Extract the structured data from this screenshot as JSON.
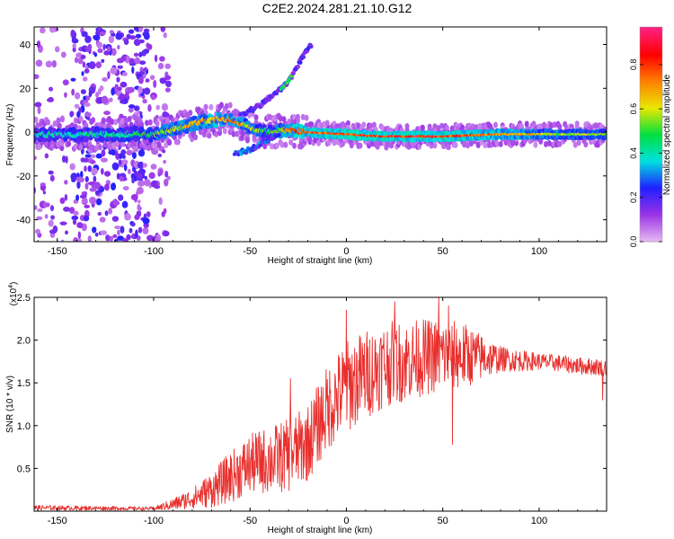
{
  "title": "C2E2.2024.281.21.10.G12",
  "chart_data": [
    {
      "type": "heatmap",
      "xlabel": "Height of straight line (km)",
      "ylabel": "Frequency (Hz)",
      "xlim": [
        -162,
        135
      ],
      "ylim": [
        -50,
        48
      ],
      "xticks": [
        -150,
        -100,
        -50,
        0,
        50,
        100
      ],
      "yticks": [
        -40,
        -20,
        0,
        20,
        40
      ],
      "colorbar": {
        "label": "Normalized spectral amplitude",
        "ticks": [
          0.0,
          0.2,
          0.4,
          0.6,
          0.8
        ],
        "range": [
          0,
          0.97
        ],
        "colormap": [
          "#e6b8f2",
          "#9a33e6",
          "#2020ff",
          "#00e0e0",
          "#00e040",
          "#e8e800",
          "#ff8000",
          "#ff0000",
          "#ff2080"
        ]
      },
      "main_band": {
        "center_hz": [
          [
            -162,
            -1
          ],
          [
            -120,
            -1
          ],
          [
            -100,
            -1
          ],
          [
            -85,
            2
          ],
          [
            -75,
            5
          ],
          [
            -60,
            6
          ],
          [
            -50,
            2
          ],
          [
            -40,
            0
          ],
          [
            -30,
            1
          ],
          [
            -20,
            0
          ],
          [
            0,
            -1
          ],
          [
            20,
            -2
          ],
          [
            50,
            -2
          ],
          [
            80,
            -1
          ],
          [
            110,
            -1
          ],
          [
            135,
            -1
          ]
        ],
        "peak_amplitude": [
          [
            -162,
            0.45
          ],
          [
            -110,
            0.5
          ],
          [
            -80,
            0.75
          ],
          [
            -60,
            0.8
          ],
          [
            -40,
            0.55
          ],
          [
            -25,
            0.9
          ],
          [
            0,
            0.95
          ],
          [
            50,
            0.95
          ],
          [
            100,
            0.7
          ],
          [
            135,
            0.6
          ]
        ]
      },
      "rising_branch_hz": [
        [
          -55,
          8
        ],
        [
          -45,
          12
        ],
        [
          -38,
          17
        ],
        [
          -32,
          21
        ],
        [
          -28,
          26
        ],
        [
          -23,
          34
        ],
        [
          -18,
          40
        ]
      ],
      "falling_branch_hz": [
        [
          -58,
          -10
        ],
        [
          -50,
          -8
        ],
        [
          -42,
          -4
        ],
        [
          -35,
          -1
        ]
      ]
    },
    {
      "type": "line",
      "xlabel": "Height of straight line (km)",
      "ylabel": "SNR (10 * v/v)",
      "yscale_label": "(x10",
      "yscale_exponent": "4",
      "xlim": [
        -162,
        135
      ],
      "ylim": [
        0,
        2.5
      ],
      "xticks": [
        -150,
        -100,
        -50,
        0,
        50,
        100
      ],
      "yticks": [
        0.5,
        1.0,
        1.5,
        2.0,
        2.5
      ],
      "color": "#e8302e",
      "trend": [
        [
          -162,
          0.04
        ],
        [
          -100,
          0.03
        ],
        [
          -90,
          0.08
        ],
        [
          -80,
          0.15
        ],
        [
          -70,
          0.25
        ],
        [
          -60,
          0.4
        ],
        [
          -50,
          0.55
        ],
        [
          -40,
          0.6
        ],
        [
          -30,
          0.65
        ],
        [
          -20,
          0.8
        ],
        [
          -10,
          1.2
        ],
        [
          0,
          1.45
        ],
        [
          10,
          1.6
        ],
        [
          20,
          1.72
        ],
        [
          30,
          1.75
        ],
        [
          40,
          1.8
        ],
        [
          50,
          1.82
        ],
        [
          60,
          1.82
        ],
        [
          70,
          1.8
        ],
        [
          80,
          1.78
        ],
        [
          90,
          1.76
        ],
        [
          100,
          1.75
        ],
        [
          110,
          1.73
        ],
        [
          120,
          1.7
        ],
        [
          135,
          1.68
        ]
      ],
      "spread": [
        [
          -162,
          0.03
        ],
        [
          -100,
          0.02
        ],
        [
          -80,
          0.12
        ],
        [
          -60,
          0.3
        ],
        [
          -40,
          0.4
        ],
        [
          -20,
          0.45
        ],
        [
          0,
          0.55
        ],
        [
          20,
          0.5
        ],
        [
          40,
          0.45
        ],
        [
          60,
          0.4
        ],
        [
          80,
          0.15
        ],
        [
          100,
          0.1
        ],
        [
          135,
          0.1
        ]
      ],
      "notable_peaks": [
        [
          -29,
          1.55
        ],
        [
          0,
          2.35
        ],
        [
          25,
          2.45
        ],
        [
          48,
          2.5
        ],
        [
          53,
          2.4
        ]
      ],
      "notable_dips": [
        [
          55,
          0.78
        ],
        [
          133,
          1.3
        ]
      ]
    }
  ]
}
